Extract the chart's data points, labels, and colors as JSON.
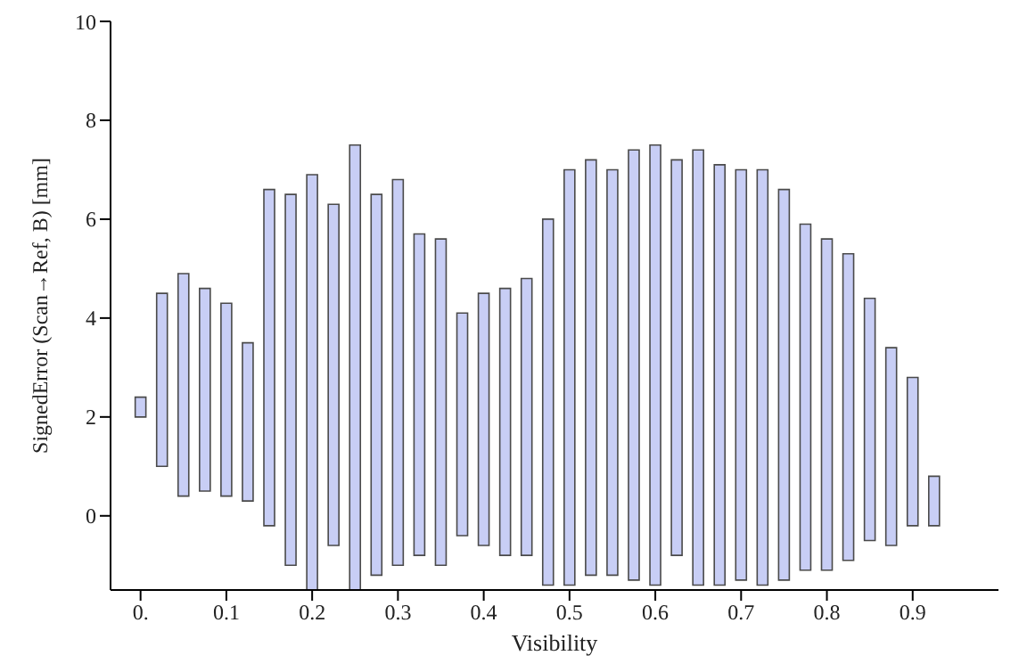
{
  "chart_data": {
    "type": "bar",
    "xlabel": "Visibility",
    "ylabel": "SignedError (Scan→Ref, B) [mm]",
    "x": [
      0,
      0.025,
      0.05,
      0.075,
      0.1,
      0.125,
      0.15,
      0.175,
      0.2,
      0.225,
      0.25,
      0.275,
      0.3,
      0.325,
      0.35,
      0.375,
      0.4,
      0.425,
      0.45,
      0.475,
      0.5,
      0.525,
      0.55,
      0.575,
      0.6,
      0.625,
      0.65,
      0.675,
      0.7,
      0.725,
      0.75,
      0.775,
      0.8,
      0.825,
      0.85,
      0.875,
      0.9,
      0.925
    ],
    "base": [
      2.0,
      1.0,
      0.4,
      0.5,
      0.4,
      0.3,
      -0.2,
      -1.0,
      -1.5,
      -0.6,
      -1.5,
      -1.2,
      -1.0,
      -0.8,
      -1.0,
      -0.4,
      -0.6,
      -0.8,
      -0.8,
      -1.4,
      -1.4,
      -1.2,
      -1.2,
      -1.3,
      -1.4,
      -0.8,
      -1.4,
      -1.4,
      -1.3,
      -1.4,
      -1.3,
      -1.1,
      -1.1,
      -0.9,
      -0.5,
      -0.6,
      -0.2,
      -0.2
    ],
    "values": [
      0.4,
      3.5,
      4.5,
      4.1,
      3.9,
      3.2,
      6.8,
      7.5,
      8.4,
      6.9,
      9.0,
      7.7,
      7.8,
      6.5,
      6.6,
      4.5,
      5.1,
      5.4,
      5.6,
      7.4,
      8.4,
      8.4,
      8.2,
      8.7,
      8.9,
      8.0,
      8.8,
      8.5,
      8.3,
      8.4,
      7.9,
      7.0,
      6.7,
      6.2,
      4.9,
      4.0,
      3.0,
      1.0
    ],
    "color": "#c8cef5",
    "xlim": [
      -0.035,
      1.0
    ],
    "xticks": [
      {
        "value": 0,
        "label": "0."
      },
      0.1,
      0.2,
      0.3,
      0.4,
      0.5,
      0.6,
      0.7,
      0.8,
      0.9
    ],
    "ylim": [
      -1.5,
      10
    ],
    "yticks": [
      0,
      2,
      4,
      6,
      8,
      10
    ],
    "grid": false,
    "legend": false
  }
}
